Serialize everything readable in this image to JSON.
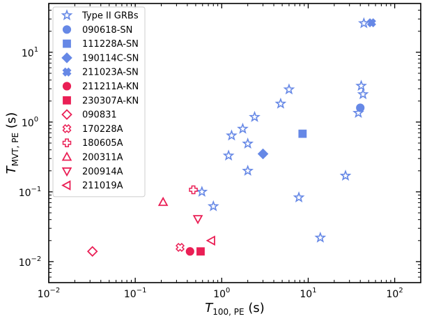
{
  "chart_data": {
    "type": "scatter",
    "xscale": "log",
    "yscale": "log",
    "xlim": [
      0.01,
      200
    ],
    "ylim": [
      0.005,
      50
    ],
    "x_ticks": [
      {
        "value": 0.01,
        "base": "10",
        "exp": "−2"
      },
      {
        "value": 0.1,
        "base": "10",
        "exp": "−1"
      },
      {
        "value": 1,
        "base": "10",
        "exp": "0"
      },
      {
        "value": 10,
        "base": "10",
        "exp": "1"
      },
      {
        "value": 100,
        "base": "10",
        "exp": "2"
      }
    ],
    "y_ticks": [
      {
        "value": 0.01,
        "base": "10",
        "exp": "−2"
      },
      {
        "value": 0.1,
        "base": "10",
        "exp": "−1"
      },
      {
        "value": 1,
        "base": "10",
        "exp": "0"
      },
      {
        "value": 10,
        "base": "10",
        "exp": "1"
      }
    ],
    "xlabel": {
      "main": "T",
      "sub": "100, PE",
      "unit": " (s)"
    },
    "ylabel": {
      "main": "T",
      "sub": "MVT, PE",
      "unit": " (s)"
    },
    "legend_position": "upper-left",
    "series": [
      {
        "name": "Type II GRBs",
        "marker": "star",
        "color": "#6688e6",
        "filled": false,
        "points": [
          [
            0.59,
            0.1
          ],
          [
            0.8,
            0.062
          ],
          [
            1.2,
            0.33
          ],
          [
            1.3,
            0.64
          ],
          [
            1.75,
            0.8
          ],
          [
            2.0,
            0.49
          ],
          [
            2.0,
            0.2
          ],
          [
            2.4,
            1.18
          ],
          [
            4.8,
            1.83
          ],
          [
            6.0,
            2.93
          ],
          [
            7.8,
            0.083
          ],
          [
            13.8,
            0.022
          ],
          [
            27,
            0.17
          ],
          [
            38,
            1.35
          ],
          [
            41,
            3.3
          ],
          [
            43,
            2.5
          ],
          [
            44,
            26.0
          ]
        ]
      },
      {
        "name": "090618-SN",
        "marker": "circle",
        "color": "#6688e6",
        "filled": true,
        "points": [
          [
            40,
            1.6
          ]
        ]
      },
      {
        "name": "111228A-SN",
        "marker": "square",
        "color": "#6688e6",
        "filled": true,
        "points": [
          [
            8.6,
            0.68
          ]
        ]
      },
      {
        "name": "190114C-SN",
        "marker": "diamond",
        "color": "#6688e6",
        "filled": true,
        "points": [
          [
            3.0,
            0.35
          ]
        ]
      },
      {
        "name": "211023A-SN",
        "marker": "x",
        "color": "#6688e6",
        "filled": true,
        "points": [
          [
            54,
            26.5
          ]
        ]
      },
      {
        "name": "211211A-KN",
        "marker": "circle",
        "color": "#ea1f55",
        "filled": true,
        "points": [
          [
            0.43,
            0.014
          ]
        ]
      },
      {
        "name": "230307A-KN",
        "marker": "square",
        "color": "#ea1f55",
        "filled": true,
        "points": [
          [
            0.57,
            0.014
          ]
        ]
      },
      {
        "name": "090831",
        "marker": "diamond",
        "color": "#ea1f55",
        "filled": false,
        "points": [
          [
            0.032,
            0.014
          ]
        ]
      },
      {
        "name": "170228A",
        "marker": "x",
        "color": "#ea1f55",
        "filled": false,
        "points": [
          [
            0.33,
            0.016
          ]
        ]
      },
      {
        "name": "180605A",
        "marker": "plus",
        "color": "#ea1f55",
        "filled": false,
        "points": [
          [
            0.47,
            0.107
          ]
        ]
      },
      {
        "name": "200311A",
        "marker": "triangle-up",
        "color": "#ea1f55",
        "filled": false,
        "points": [
          [
            0.21,
            0.071
          ]
        ]
      },
      {
        "name": "200914A",
        "marker": "triangle-down",
        "color": "#ea1f55",
        "filled": false,
        "points": [
          [
            0.53,
            0.041
          ]
        ]
      },
      {
        "name": "211019A",
        "marker": "triangle-left",
        "color": "#ea1f55",
        "filled": false,
        "points": [
          [
            0.76,
            0.02
          ]
        ]
      }
    ]
  }
}
